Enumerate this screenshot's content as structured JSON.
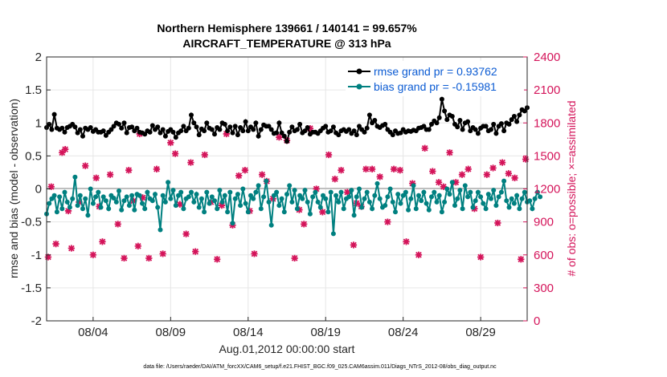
{
  "chart_data": {
    "type": "line",
    "title_line1": "Northern Hemisphere 139661 / 140141 = 99.657%",
    "title_line2": "AIRCRAFT_TEMPERATURE @ 313 hPa",
    "xlabel": "Aug.01,2012 00:00:00 start",
    "ylabel_left": "rmse and bias (model - observation)",
    "ylabel_right": "# of obs: o=possible; ×=assimilated",
    "x_ticks": [
      "08/04",
      "08/09",
      "08/14",
      "08/19",
      "08/24",
      "08/29"
    ],
    "x_tick_days": [
      4,
      9,
      14,
      19,
      24,
      29
    ],
    "xlim": [
      1,
      32
    ],
    "ylim_left": [
      -2,
      2
    ],
    "left_ticks": [
      "2",
      "1.5",
      "1",
      "0.5",
      "0",
      "-0.5",
      "-1",
      "-1.5",
      "-2"
    ],
    "ylim_right": [
      0,
      2400
    ],
    "right_ticks": [
      "2400",
      "2100",
      "1800",
      "1500",
      "1200",
      "900",
      "600",
      "300",
      "0"
    ],
    "grid": true,
    "legend_position": "top-right",
    "colors": {
      "rmse": "#000000",
      "bias": "#008080",
      "obs": "#d4145a",
      "legend_text": "#0000ff",
      "zero_line": "#bfbfbf"
    },
    "series": [
      {
        "name": "rmse grand pr = 0.93762",
        "values": [
          0.93,
          0.98,
          0.9,
          1.13,
          0.92,
          0.9,
          0.92,
          0.86,
          0.93,
          0.95,
          0.98,
          0.94,
          0.85,
          0.9,
          0.8,
          0.92,
          0.9,
          0.93,
          0.87,
          0.9,
          0.86,
          0.86,
          0.88,
          0.81,
          0.86,
          0.9,
          0.95,
          1.0,
          0.98,
          0.92,
          1.0,
          0.85,
          0.93,
          0.94,
          0.88,
          0.92,
          0.86,
          0.85,
          0.83,
          0.88,
          0.86,
          0.96,
          0.9,
          0.94,
          0.85,
          0.9,
          0.8,
          0.87,
          0.9,
          0.86,
          0.78,
          0.85,
          0.88,
          0.95,
          0.88,
          0.92,
          1.12,
          1.0,
          0.94,
          0.82,
          0.91,
          0.88,
          1.0,
          0.92,
          0.9,
          0.83,
          0.93,
          0.9,
          1.0,
          0.98,
          0.88,
          0.94,
          0.85,
          0.95,
          0.82,
          0.93,
          0.88,
          1.02,
          0.88,
          0.94,
          0.9,
          1.0,
          0.8,
          0.9,
          0.97,
          0.95,
          0.95,
          0.9,
          0.84,
          0.85,
          1.0,
          0.85,
          0.8,
          0.72,
          0.86,
          0.94,
          0.88,
          0.9,
          0.98,
          0.85,
          0.88,
          0.93,
          0.83,
          0.86,
          0.86,
          0.84,
          0.88,
          0.92,
          0.95,
          0.86,
          0.88,
          0.94,
          0.85,
          0.82,
          0.88,
          0.9,
          0.87,
          0.9,
          0.84,
          0.88,
          0.82,
          0.95,
          0.9,
          0.86,
          0.92,
          1.12,
          1.0,
          1.04,
          0.95,
          0.93,
          0.96,
          0.98,
          0.9,
          0.86,
          0.82,
          0.88,
          0.84,
          0.85,
          0.9,
          0.86,
          0.88,
          0.87,
          0.89,
          0.88,
          0.92,
          0.93,
          0.95,
          0.9,
          0.9,
          0.98,
          1.03,
          1.0,
          1.08,
          1.36,
          1.18,
          1.05,
          1.12,
          1.1,
          0.98,
          0.94,
          1.04,
          0.9,
          1.0,
          1.02,
          0.88,
          0.93,
          0.9,
          0.84,
          0.92,
          0.95,
          0.95,
          0.88,
          0.9,
          0.98,
          0.84,
          0.95,
          0.99,
          0.88,
          1.0,
          0.98,
          1.05,
          1.1,
          1.02,
          1.12,
          1.2,
          1.18,
          1.23
        ],
        "x_start": 1.0,
        "x_step": 0.166667
      },
      {
        "name": "bias grand pr = -0.15981",
        "values": [
          -0.38,
          -0.22,
          -0.15,
          -0.1,
          -0.35,
          -0.12,
          -0.3,
          -0.05,
          -0.2,
          -0.28,
          -0.15,
          0.18,
          -0.25,
          -0.1,
          -0.3,
          -0.15,
          -0.4,
          0.0,
          -0.22,
          -0.12,
          -0.05,
          -0.28,
          -0.12,
          -0.18,
          -0.3,
          -0.1,
          -0.14,
          -0.2,
          -0.03,
          -0.32,
          -0.18,
          -0.12,
          -0.25,
          -0.1,
          -0.32,
          -0.08,
          -0.1,
          -0.22,
          -0.3,
          -0.05,
          -0.15,
          -0.18,
          -0.08,
          -0.28,
          -0.62,
          -0.1,
          -0.2,
          0.1,
          -0.15,
          -0.02,
          -0.25,
          -0.1,
          -0.05,
          -0.3,
          -0.15,
          -0.12,
          -0.05,
          -0.2,
          -0.08,
          -0.28,
          -0.15,
          -0.35,
          -0.05,
          -0.22,
          -0.12,
          -0.18,
          -0.3,
          -0.02,
          -0.2,
          -0.1,
          -0.35,
          -0.05,
          -0.52,
          -0.15,
          -0.08,
          -0.25,
          0.0,
          -0.22,
          -0.35,
          -0.1,
          -0.15,
          -0.05,
          0.05,
          -0.3,
          -0.12,
          0.12,
          -0.2,
          -0.55,
          -0.1,
          -0.05,
          -0.25,
          -0.15,
          -0.35,
          -0.08,
          0.05,
          -0.2,
          -0.02,
          -0.3,
          -0.1,
          -0.15,
          -0.02,
          -0.2,
          -0.38,
          -0.12,
          -0.05,
          -0.2,
          -0.28,
          -0.1,
          -0.15,
          -0.35,
          -0.05,
          -0.68,
          -0.1,
          -0.2,
          -0.05,
          -0.3,
          -0.15,
          -0.12,
          -0.02,
          -0.4,
          -0.12,
          0.0,
          -0.28,
          -0.15,
          -0.05,
          -0.2,
          -0.3,
          -0.1,
          0.08,
          -0.15,
          -0.28,
          -0.25,
          -0.12,
          0.0,
          -0.2,
          -0.35,
          -0.08,
          -0.22,
          -0.1,
          -0.05,
          -0.32,
          -0.15,
          0.05,
          -0.3,
          -0.1,
          -0.18,
          -0.05,
          -0.22,
          -0.32,
          -0.12,
          -0.05,
          -0.2,
          -0.1,
          -0.35,
          -0.2,
          0.0,
          -0.08,
          0.1,
          -0.25,
          -0.15,
          -0.02,
          -0.3,
          0.05,
          -0.12,
          -0.05,
          -0.28,
          -0.18,
          -0.05,
          -0.12,
          -0.22,
          -0.3,
          -0.08,
          -0.15,
          -0.02,
          -0.25,
          -0.12,
          -0.05,
          0.12,
          -0.18,
          -0.28,
          -0.15,
          -0.22,
          -0.1,
          -0.3,
          -0.15,
          -0.05,
          -0.2,
          -0.18,
          -0.3,
          -0.15,
          -0.05,
          -0.12
        ],
        "x_start": 1.0,
        "x_step": 0.166667
      }
    ],
    "obs_counts": {
      "name": "assimilated observation counts",
      "axis": "right",
      "x": [
        1.1,
        1.3,
        1.6,
        2.0,
        2.2,
        2.4,
        2.6,
        3.1,
        3.5,
        4.0,
        4.2,
        4.4,
        4.6,
        5.1,
        5.6,
        6.0,
        6.3,
        6.6,
        6.9,
        7.0,
        7.2,
        7.6,
        8.1,
        8.5,
        9.0,
        9.3,
        9.6,
        10.0,
        10.3,
        10.6,
        11.2,
        11.6,
        12.0,
        12.3,
        12.6,
        13.0,
        13.4,
        13.8,
        14.1,
        14.4,
        14.9,
        15.2,
        15.6,
        16.0,
        16.5,
        17.0,
        17.3,
        17.6,
        18.0,
        18.4,
        18.8,
        19.2,
        19.6,
        20.0,
        20.4,
        20.8,
        21.0,
        21.3,
        21.6,
        22.0,
        22.5,
        23.0,
        23.4,
        23.8,
        24.2,
        24.6,
        25.0,
        25.4,
        25.9,
        26.3,
        26.6,
        27.0,
        27.4,
        27.8,
        28.2,
        28.6,
        29.0,
        29.4,
        29.8,
        30.1,
        30.4,
        30.8,
        31.2,
        31.6,
        31.9
      ],
      "values": [
        580,
        1220,
        700,
        1530,
        1560,
        1000,
        660,
        1080,
        1410,
        600,
        1300,
        1040,
        720,
        1330,
        880,
        570,
        1370,
        1090,
        680,
        1700,
        1120,
        570,
        1380,
        610,
        1620,
        1520,
        1060,
        790,
        1440,
        630,
        1510,
        1080,
        560,
        1050,
        1700,
        870,
        1320,
        1370,
        1000,
        610,
        1330,
        1270,
        1110,
        1670,
        1640,
        570,
        1010,
        880,
        1750,
        1200,
        990,
        1510,
        1290,
        1370,
        1170,
        690,
        1070,
        1040,
        1380,
        1380,
        1310,
        900,
        1380,
        1370,
        720,
        1250,
        600,
        1570,
        1360,
        1260,
        1220,
        1530,
        1260,
        1330,
        1380,
        1020,
        580,
        1330,
        1390,
        890,
        1440,
        1340,
        1300,
        560,
        1470
      ]
    }
  },
  "footer_text": "data file: /Users/raeder/DAI/ATM_forcXX/CAM6_setup/f.e21.FHIST_BGC.f09_025.CAM6assim.011/Diags_NTrS_2012-08/obs_diag_output.nc"
}
